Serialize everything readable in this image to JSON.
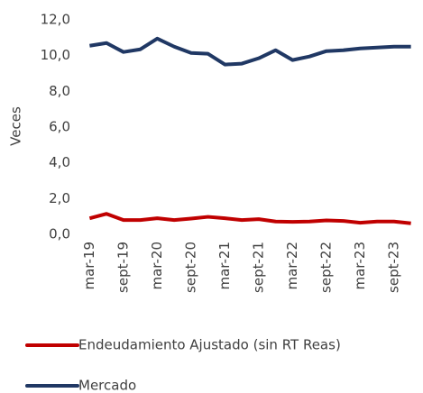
{
  "chart_data": {
    "type": "line",
    "y_label": "Veces",
    "categories": [
      "mar-19",
      null,
      "sept-19",
      null,
      "mar-20",
      null,
      "sept-20",
      null,
      "mar-21",
      null,
      "sept-21",
      null,
      "mar-22",
      null,
      "sept-22",
      null,
      "mar-23",
      null,
      "sept-23",
      null
    ],
    "series": [
      {
        "name": "Endeudamiento Ajustado (sin RT Reas)",
        "color": "#c00000",
        "values": [
          0.9,
          1.15,
          0.8,
          0.8,
          0.9,
          0.8,
          0.88,
          0.98,
          0.9,
          0.8,
          0.85,
          0.72,
          0.7,
          0.72,
          0.78,
          0.75,
          0.65,
          0.72,
          0.72,
          0.62
        ]
      },
      {
        "name": "Mercado",
        "color": "#203864",
        "values": [
          10.55,
          10.7,
          10.2,
          10.35,
          10.95,
          10.5,
          10.15,
          10.1,
          9.5,
          9.55,
          9.85,
          10.3,
          9.75,
          9.95,
          10.25,
          10.3,
          10.4,
          10.45,
          10.5,
          10.5
        ]
      }
    ],
    "ylim": [
      0,
      12
    ],
    "yticks": [
      {
        "value": 0,
        "label": "0,0"
      },
      {
        "value": 2,
        "label": "2,0"
      },
      {
        "value": 4,
        "label": "4,0"
      },
      {
        "value": 6,
        "label": "6,0"
      },
      {
        "value": 8,
        "label": "8,0"
      },
      {
        "value": 10,
        "label": "10,0"
      },
      {
        "value": 12,
        "label": "12,0"
      }
    ],
    "grid": false,
    "legend": "bottom"
  }
}
